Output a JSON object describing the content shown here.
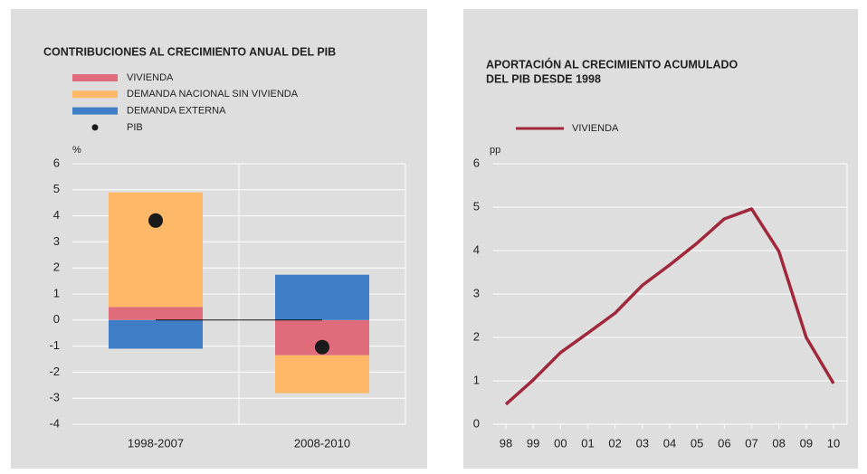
{
  "chart_data": [
    {
      "type": "bar",
      "stacked": true,
      "title": "CONTRIBUCIONES AL CRECIMIENTO ANUAL DEL PIB",
      "y_label": "%",
      "categories": [
        "1998-2007",
        "2008-2010"
      ],
      "series": [
        {
          "name": "VIVIENDA",
          "color": "#e06b7a",
          "values": [
            0.5,
            -1.35
          ]
        },
        {
          "name": "DEMANDA NACIONAL SIN VIVIENDA",
          "color": "#ffb867",
          "values": [
            4.4,
            -1.46
          ]
        },
        {
          "name": "DEMANDA EXTERNA",
          "color": "#3f7dc6",
          "values": [
            -1.1,
            1.74
          ]
        }
      ],
      "points": {
        "name": "PIB",
        "color": "#1a1a1a",
        "values": [
          3.82,
          -1.04
        ]
      },
      "ylim": [
        -4,
        6
      ],
      "yticks": [
        6,
        5,
        4,
        3,
        2,
        1,
        0,
        -1,
        -2,
        -3,
        -4
      ],
      "grid": true
    },
    {
      "type": "line",
      "title": [
        "APORTACIÓN AL CRECIMIENTO ACUMULADO",
        "DEL PIB DESDE 1998"
      ],
      "y_label": "pp",
      "categories": [
        "98",
        "99",
        "00",
        "01",
        "02",
        "03",
        "04",
        "05",
        "06",
        "07",
        "08",
        "09",
        "10"
      ],
      "series": [
        {
          "name": "VIVIENDA",
          "color": "#a0283c",
          "values": [
            0.46,
            1.02,
            1.65,
            2.1,
            2.56,
            3.2,
            3.67,
            4.17,
            4.73,
            4.96,
            3.98,
            2.0,
            0.94
          ]
        }
      ],
      "ylim": [
        0,
        6
      ],
      "yticks": [
        0,
        1,
        2,
        3,
        4,
        5,
        6
      ],
      "grid": true
    }
  ]
}
